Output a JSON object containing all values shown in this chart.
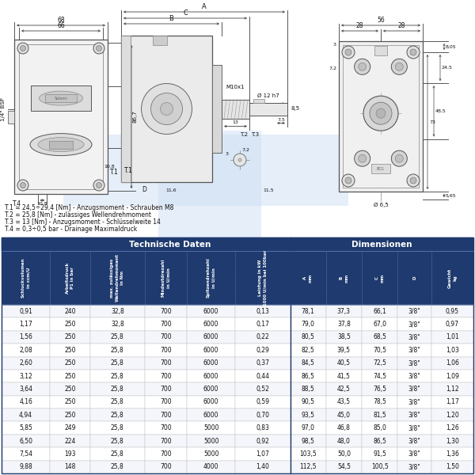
{
  "title_notes": [
    "T.1 = 24,5÷29,4 [Nm] - Anzugsmoment - Schrauben M8",
    "T.2 = 25,8 [Nm] - zulässiges Wellendrehmoment",
    "T.3 = 13 [Nm] - Anzugsmoment - Schlüsselweite 14",
    "T.4 = 0,3÷0,5 bar - Drainage Maximaldruck"
  ],
  "header_tech": "Technische Daten",
  "header_dim": "Dimensionen",
  "col_headers_line1": [
    "Schluckvolumen",
    "Arbeitsdruck",
    "max. zulässiges",
    "Mindestdrezahl",
    "Spitzendrehzahl",
    "Leistung in kW",
    "A",
    "B",
    "C",
    "D",
    "Gewicht"
  ],
  "col_headers_line2": [
    "in ccm/U",
    "P1 in bar",
    "Wellendrehmoment",
    "in U/min",
    "in U/min",
    "1000 U/min bei 100bar",
    "",
    "",
    "",
    "",
    ""
  ],
  "col_headers_line3": [
    "",
    "",
    "in Nm",
    "",
    "",
    "",
    "mm",
    "mm",
    "mm",
    "",
    "kg"
  ],
  "rows": [
    [
      "0,91",
      "240",
      "32,8",
      "700",
      "6000",
      "0,13",
      "78,1",
      "37,3",
      "66,1",
      "3/8\"",
      "0,95"
    ],
    [
      "1,17",
      "250",
      "32,8",
      "700",
      "6000",
      "0,17",
      "79,0",
      "37,8",
      "67,0",
      "3/8\"",
      "0,97"
    ],
    [
      "1,56",
      "250",
      "25,8",
      "700",
      "6000",
      "0,22",
      "80,5",
      "38,5",
      "68,5",
      "3/8\"",
      "1,01"
    ],
    [
      "2,08",
      "250",
      "25,8",
      "700",
      "6000",
      "0,29",
      "82,5",
      "39,5",
      "70,5",
      "3/8\"",
      "1,03"
    ],
    [
      "2,60",
      "250",
      "25,8",
      "700",
      "6000",
      "0,37",
      "84,5",
      "40,5",
      "72,5",
      "3/8\"",
      "1,06"
    ],
    [
      "3,12",
      "250",
      "25,8",
      "700",
      "6000",
      "0,44",
      "86,5",
      "41,5",
      "74,5",
      "3/8\"",
      "1,09"
    ],
    [
      "3,64",
      "250",
      "25,8",
      "700",
      "6000",
      "0,52",
      "88,5",
      "42,5",
      "76,5",
      "3/8\"",
      "1,12"
    ],
    [
      "4,16",
      "250",
      "25,8",
      "700",
      "6000",
      "0,59",
      "90,5",
      "43,5",
      "78,5",
      "3/8\"",
      "1,17"
    ],
    [
      "4,94",
      "250",
      "25,8",
      "700",
      "6000",
      "0,70",
      "93,5",
      "45,0",
      "81,5",
      "3/8\"",
      "1,20"
    ],
    [
      "5,85",
      "249",
      "25,8",
      "700",
      "5000",
      "0,83",
      "97,0",
      "46,8",
      "85,0",
      "3/8\"",
      "1,26"
    ],
    [
      "6,50",
      "224",
      "25,8",
      "700",
      "5000",
      "0,92",
      "98,5",
      "48,0",
      "86,5",
      "3/8\"",
      "1,30"
    ],
    [
      "7,54",
      "193",
      "25,8",
      "700",
      "5000",
      "1,07",
      "103,5",
      "50,0",
      "91,5",
      "3/8\"",
      "1,36"
    ],
    [
      "9,88",
      "148",
      "25,8",
      "700",
      "4000",
      "1,40",
      "112,5",
      "54,5",
      "100,5",
      "3/8\"",
      "1,50"
    ]
  ],
  "dark_blue": "#1e3a6e",
  "mid_blue": "#2a4a8a",
  "light_blue": "#ccd6f0",
  "white": "#ffffff",
  "black": "#111111",
  "gray_line": "#999999",
  "bg_color": "#ffffff",
  "tech_col_count": 6,
  "col_widths_raw": [
    46,
    38,
    52,
    40,
    46,
    52,
    34,
    34,
    34,
    32,
    40
  ]
}
